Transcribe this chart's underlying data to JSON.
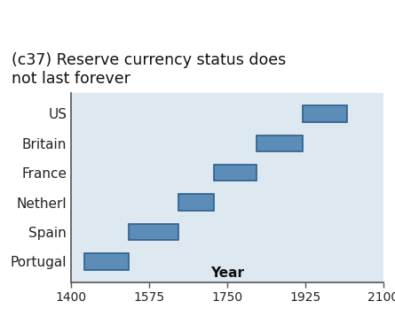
{
  "title": "(c37) Reserve currency status does\nnot last forever",
  "xlabel": "Year",
  "countries": [
    "Portugal",
    "Spain",
    "Netherl",
    "France",
    "Britain",
    "US"
  ],
  "bar_starts": [
    1430,
    1530,
    1640,
    1720,
    1815,
    1920
  ],
  "bar_ends": [
    1530,
    1640,
    1720,
    1815,
    1920,
    2020
  ],
  "xlim": [
    1400,
    2100
  ],
  "xticks": [
    1400,
    1575,
    1750,
    1925,
    2100
  ],
  "bar_color": "#5B8DB8",
  "bar_edgecolor": "#2E5F8A",
  "bg_color": "#DDE8F0",
  "bar_height": 0.55,
  "title_fontsize": 12.5,
  "label_fontsize": 11,
  "tick_fontsize": 10
}
